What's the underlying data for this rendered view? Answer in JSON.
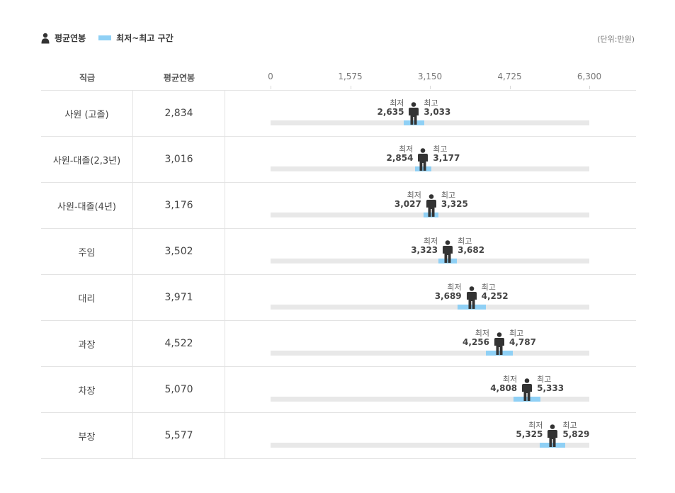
{
  "legend": {
    "avg_label": "평균연봉",
    "range_label": "최저~최고 구간"
  },
  "unit": "(단위:만원)",
  "columns": {
    "grade": "직급",
    "avg": "평균연봉"
  },
  "colors": {
    "range": "#8fd0f5",
    "track": "#e8e8e8",
    "person": "#333333"
  },
  "labels": {
    "min": "최저",
    "max": "최고"
  },
  "chart_data": {
    "type": "range-bar",
    "x_ticks": [
      "0",
      "1,575",
      "3,150",
      "4,725",
      "6,300"
    ],
    "xlim": [
      0,
      6300
    ],
    "categories": [
      "사원 (고졸)",
      "사원-대졸(2,3년)",
      "사원-대졸(4년)",
      "주임",
      "대리",
      "과장",
      "차장",
      "부장"
    ],
    "series": [
      {
        "name": "평균연봉",
        "values": [
          2834,
          3016,
          3176,
          3502,
          3971,
          4522,
          5070,
          5577
        ],
        "display": [
          "2,834",
          "3,016",
          "3,176",
          "3,502",
          "3,971",
          "4,522",
          "5,070",
          "5,577"
        ]
      },
      {
        "name": "최저",
        "values": [
          2635,
          2854,
          3027,
          3323,
          3689,
          4256,
          4808,
          5325
        ],
        "display": [
          "2,635",
          "2,854",
          "3,027",
          "3,323",
          "3,689",
          "4,256",
          "4,808",
          "5,325"
        ]
      },
      {
        "name": "최고",
        "values": [
          3033,
          3177,
          3325,
          3682,
          4252,
          4787,
          5333,
          5829
        ],
        "display": [
          "3,033",
          "3,177",
          "3,325",
          "3,682",
          "4,252",
          "4,787",
          "5,333",
          "5,829"
        ]
      }
    ]
  }
}
